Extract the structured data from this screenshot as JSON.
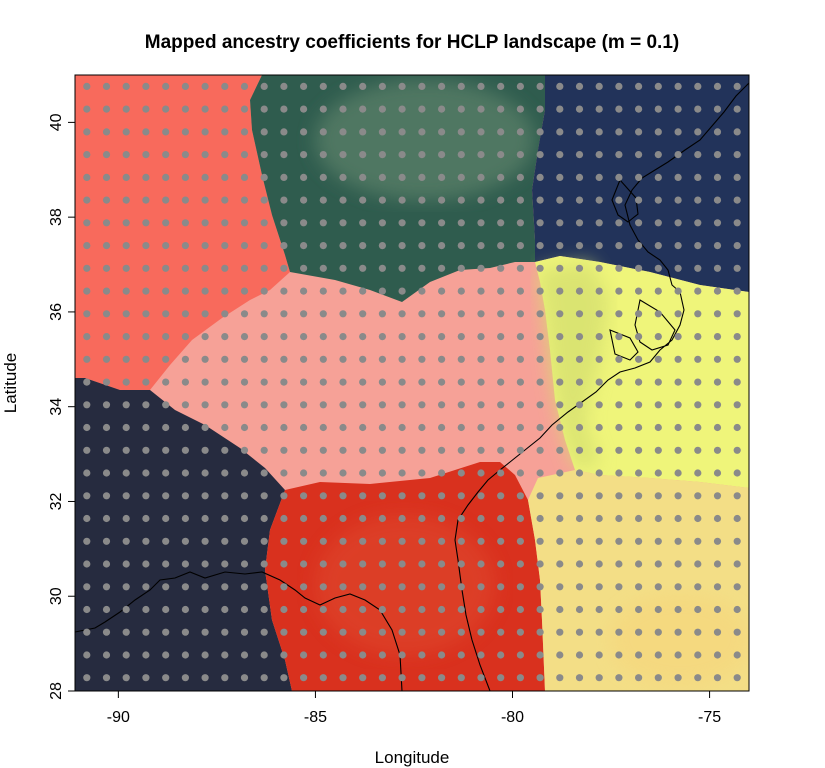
{
  "chart_data": {
    "type": "heatmap",
    "title": "Mapped ancestry coefficients for HCLP landscape (m = 0.1)",
    "xlabel": "Longitude",
    "ylabel": "Latitude",
    "xlim": [
      -91.1,
      -74.0
    ],
    "ylim": [
      28.0,
      41.0
    ],
    "x_ticks": [
      -90,
      -85,
      -80,
      -75
    ],
    "x_tick_labels": [
      "-90",
      "-85",
      "-80",
      "-75"
    ],
    "y_ticks": [
      28,
      30,
      32,
      34,
      36,
      38,
      40
    ],
    "y_tick_labels": [
      "28",
      "30",
      "32",
      "34",
      "36",
      "38",
      "40"
    ],
    "grid": false,
    "clusters": [
      {
        "id": "K1",
        "color": "#f86a5c",
        "region": "northwest"
      },
      {
        "id": "K2",
        "color": "#2f5c4e",
        "region": "north-central"
      },
      {
        "id": "K3",
        "color": "#22335a",
        "region": "northeast"
      },
      {
        "id": "K4",
        "color": "#f6a197",
        "region": "central"
      },
      {
        "id": "K5",
        "color": "#eff57a",
        "region": "east"
      },
      {
        "id": "K6",
        "color": "#262b3f",
        "region": "southwest"
      },
      {
        "id": "K7",
        "color": "#d9311e",
        "region": "south-central"
      },
      {
        "id": "K8",
        "color": "#f3de86",
        "region": "southeast"
      }
    ],
    "sample_grid": {
      "point_color": "#8a8a8a",
      "lon_start": -90.8,
      "lon_step": 0.5,
      "lon_count": 34,
      "lat_start": 28.28,
      "lat_step": 0.48,
      "lat_count": 27
    }
  }
}
